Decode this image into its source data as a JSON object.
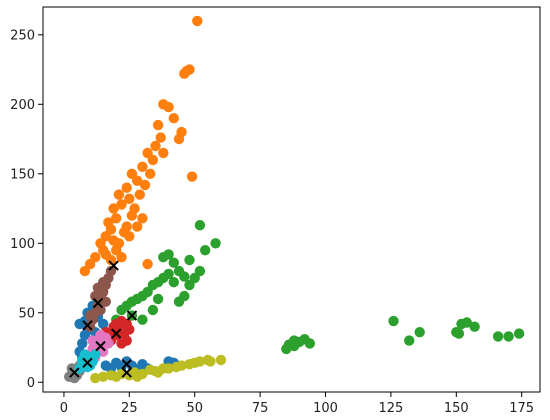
{
  "chart_data": {
    "type": "scatter",
    "title": "",
    "xlabel": "",
    "ylabel": "",
    "xlim": [
      -8,
      182
    ],
    "ylim": [
      -7,
      270
    ],
    "x_ticks": [
      0,
      25,
      50,
      75,
      100,
      125,
      150,
      175
    ],
    "y_ticks": [
      0,
      50,
      100,
      150,
      200,
      250
    ],
    "x_tick_labels": [
      "0",
      "25",
      "50",
      "75",
      "100",
      "125",
      "150",
      "175"
    ],
    "y_tick_labels": [
      "0",
      "50",
      "100",
      "150",
      "200",
      "250"
    ],
    "grid": false,
    "legend": "none",
    "series": [
      {
        "color": "#1f77b4",
        "points": [
          [
            6,
            22
          ],
          [
            7,
            28
          ],
          [
            8,
            34
          ],
          [
            8,
            44
          ],
          [
            9,
            50
          ],
          [
            10,
            38
          ],
          [
            11,
            30
          ],
          [
            12,
            24
          ],
          [
            13,
            47
          ],
          [
            14,
            52
          ],
          [
            7,
            18
          ],
          [
            9,
            40
          ],
          [
            11,
            55
          ],
          [
            18,
            10
          ],
          [
            20,
            14
          ],
          [
            22,
            11
          ],
          [
            24,
            15
          ],
          [
            26,
            12
          ],
          [
            28,
            9
          ],
          [
            30,
            13
          ],
          [
            32,
            10
          ],
          [
            16,
            12
          ],
          [
            40,
            15
          ],
          [
            42,
            14
          ],
          [
            6,
            42
          ],
          [
            10,
            46
          ],
          [
            12,
            36
          ],
          [
            15,
            42
          ]
        ]
      },
      {
        "color": "#ff7f0e",
        "points": [
          [
            8,
            80
          ],
          [
            10,
            85
          ],
          [
            12,
            90
          ],
          [
            14,
            100
          ],
          [
            15,
            95
          ],
          [
            16,
            105
          ],
          [
            17,
            115
          ],
          [
            18,
            110
          ],
          [
            19,
            125
          ],
          [
            20,
            118
          ],
          [
            21,
            135
          ],
          [
            22,
            128
          ],
          [
            24,
            140
          ],
          [
            25,
            132
          ],
          [
            26,
            150
          ],
          [
            28,
            145
          ],
          [
            30,
            155
          ],
          [
            32,
            165
          ],
          [
            33,
            150
          ],
          [
            35,
            170
          ],
          [
            37,
            176
          ],
          [
            38,
            200
          ],
          [
            40,
            198
          ],
          [
            42,
            190
          ],
          [
            44,
            175
          ],
          [
            45,
            180
          ],
          [
            46,
            222
          ],
          [
            47,
            224
          ],
          [
            48,
            225
          ],
          [
            49,
            148
          ],
          [
            51,
            260
          ],
          [
            20,
            95
          ],
          [
            23,
            108
          ],
          [
            26,
            120
          ],
          [
            29,
            135
          ],
          [
            31,
            142
          ],
          [
            34,
            160
          ],
          [
            36,
            185
          ],
          [
            38,
            165
          ],
          [
            18,
            88
          ],
          [
            21,
            100
          ],
          [
            24,
            112
          ],
          [
            27,
            125
          ],
          [
            30,
            118
          ],
          [
            22,
            90
          ],
          [
            16,
            92
          ],
          [
            19,
            102
          ],
          [
            25,
            105
          ],
          [
            28,
            112
          ],
          [
            32,
            85
          ]
        ]
      },
      {
        "color": "#2ca02c",
        "points": [
          [
            20,
            45
          ],
          [
            22,
            52
          ],
          [
            24,
            55
          ],
          [
            26,
            58
          ],
          [
            28,
            60
          ],
          [
            30,
            62
          ],
          [
            32,
            65
          ],
          [
            34,
            70
          ],
          [
            36,
            72
          ],
          [
            38,
            75
          ],
          [
            40,
            78
          ],
          [
            42,
            72
          ],
          [
            44,
            80
          ],
          [
            46,
            76
          ],
          [
            48,
            70
          ],
          [
            50,
            75
          ],
          [
            52,
            80
          ],
          [
            54,
            95
          ],
          [
            58,
            100
          ],
          [
            52,
            113
          ],
          [
            38,
            90
          ],
          [
            42,
            86
          ],
          [
            40,
            92
          ],
          [
            36,
            60
          ],
          [
            46,
            62
          ],
          [
            30,
            45
          ],
          [
            26,
            48
          ],
          [
            34,
            52
          ],
          [
            44,
            58
          ],
          [
            48,
            88
          ],
          [
            85,
            24
          ],
          [
            86,
            27
          ],
          [
            88,
            30
          ],
          [
            90,
            29
          ],
          [
            92,
            31
          ],
          [
            94,
            28
          ],
          [
            88,
            26
          ],
          [
            126,
            44
          ],
          [
            132,
            30
          ],
          [
            136,
            36
          ],
          [
            150,
            36
          ],
          [
            152,
            42
          ],
          [
            154,
            43
          ],
          [
            157,
            40
          ],
          [
            166,
            33
          ],
          [
            170,
            33
          ],
          [
            174,
            35
          ],
          [
            151,
            35
          ]
        ]
      },
      {
        "color": "#d62728",
        "points": [
          [
            16,
            28
          ],
          [
            17,
            32
          ],
          [
            18,
            36
          ],
          [
            19,
            40
          ],
          [
            20,
            42
          ],
          [
            21,
            38
          ],
          [
            22,
            44
          ],
          [
            23,
            35
          ],
          [
            24,
            30
          ],
          [
            25,
            38
          ],
          [
            18,
            30
          ],
          [
            20,
            34
          ],
          [
            22,
            28
          ],
          [
            16,
            36
          ],
          [
            24,
            42
          ]
        ]
      },
      {
        "color": "#8c564b",
        "points": [
          [
            10,
            40
          ],
          [
            11,
            45
          ],
          [
            12,
            50
          ],
          [
            13,
            55
          ],
          [
            14,
            60
          ],
          [
            15,
            65
          ],
          [
            16,
            70
          ],
          [
            17,
            75
          ],
          [
            18,
            80
          ],
          [
            12,
            62
          ],
          [
            14,
            52
          ],
          [
            16,
            58
          ],
          [
            10,
            48
          ],
          [
            15,
            72
          ],
          [
            13,
            68
          ]
        ]
      },
      {
        "color": "#e377c2",
        "points": [
          [
            10,
            20
          ],
          [
            11,
            24
          ],
          [
            12,
            28
          ],
          [
            13,
            30
          ],
          [
            14,
            26
          ],
          [
            15,
            22
          ],
          [
            16,
            32
          ],
          [
            12,
            18
          ],
          [
            14,
            34
          ],
          [
            11,
            30
          ],
          [
            17,
            28
          ],
          [
            13,
            22
          ]
        ]
      },
      {
        "color": "#7f7f7f",
        "points": [
          [
            2,
            4
          ],
          [
            3,
            6
          ],
          [
            4,
            8
          ],
          [
            5,
            10
          ],
          [
            6,
            12
          ],
          [
            4,
            3
          ],
          [
            5,
            5
          ],
          [
            3,
            10
          ],
          [
            7,
            14
          ],
          [
            6,
            8
          ]
        ]
      },
      {
        "color": "#bcbd22",
        "points": [
          [
            20,
            4
          ],
          [
            25,
            5
          ],
          [
            30,
            6
          ],
          [
            35,
            8
          ],
          [
            40,
            10
          ],
          [
            45,
            12
          ],
          [
            50,
            14
          ],
          [
            55,
            16
          ],
          [
            60,
            16
          ],
          [
            22,
            6
          ],
          [
            27,
            7
          ],
          [
            33,
            9
          ],
          [
            38,
            10
          ],
          [
            43,
            11
          ],
          [
            48,
            13
          ],
          [
            52,
            15
          ],
          [
            56,
            15
          ],
          [
            12,
            3
          ],
          [
            15,
            4
          ],
          [
            18,
            5
          ],
          [
            28,
            4
          ],
          [
            36,
            7
          ]
        ]
      },
      {
        "color": "#17becf",
        "points": [
          [
            6,
            10
          ],
          [
            7,
            12
          ],
          [
            8,
            14
          ],
          [
            9,
            16
          ],
          [
            10,
            18
          ],
          [
            11,
            15
          ],
          [
            12,
            20
          ],
          [
            8,
            20
          ],
          [
            10,
            12
          ],
          [
            7,
            16
          ],
          [
            9,
            11
          ]
        ]
      }
    ],
    "centroids": [
      [
        4,
        7
      ],
      [
        9,
        14
      ],
      [
        14,
        26
      ],
      [
        20,
        35
      ],
      [
        9,
        41
      ],
      [
        13,
        57
      ],
      [
        19,
        84
      ],
      [
        26,
        48
      ],
      [
        24,
        13
      ],
      [
        24,
        7
      ]
    ]
  }
}
